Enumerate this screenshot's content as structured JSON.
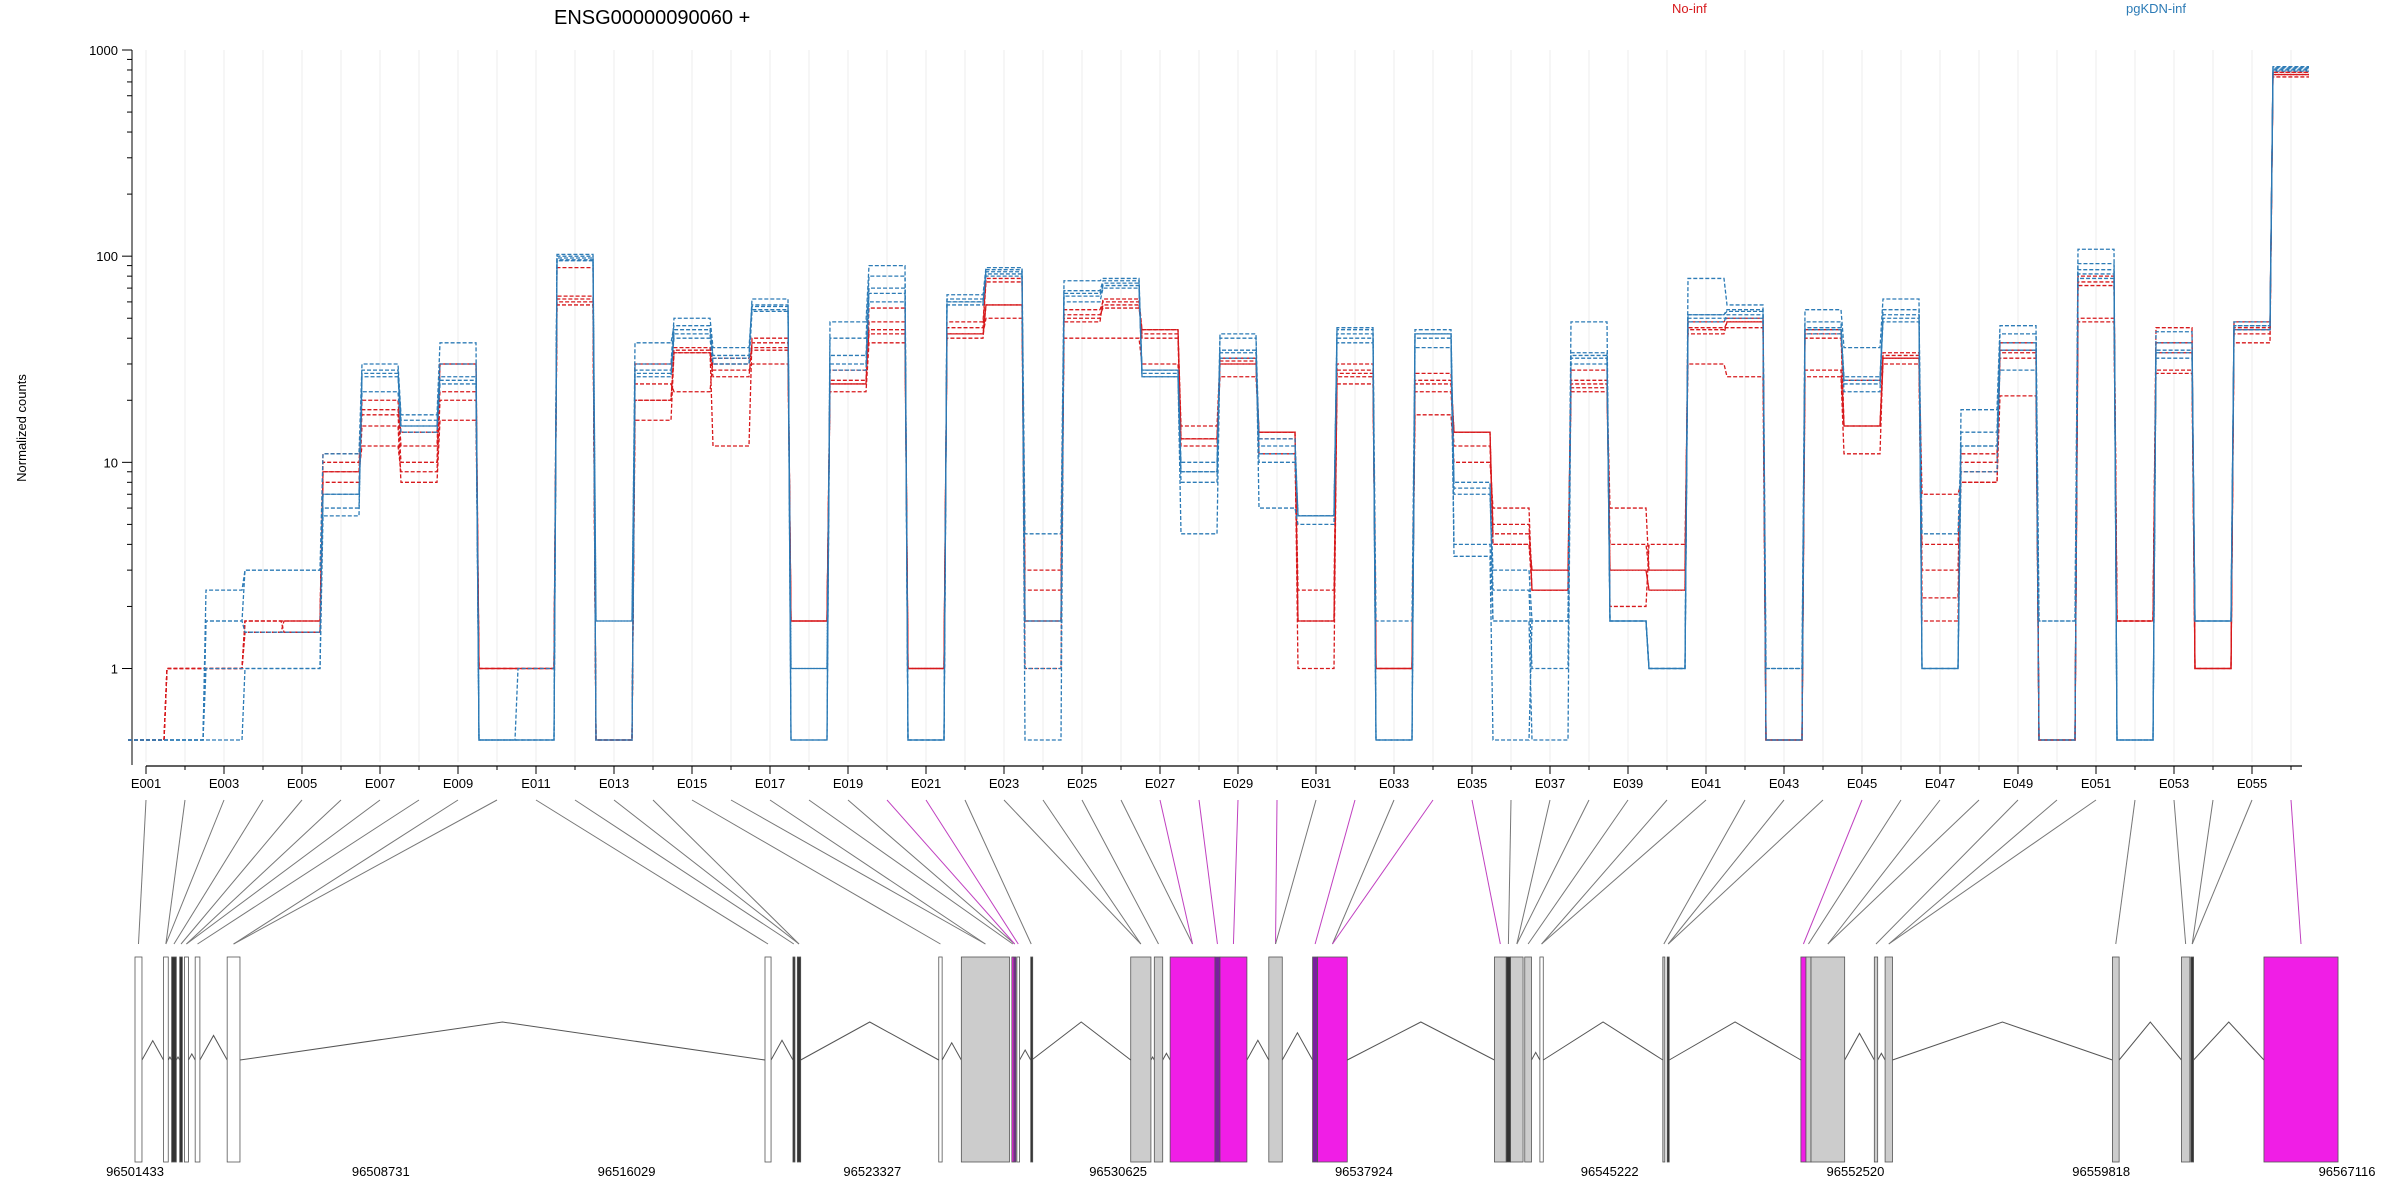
{
  "chart_data": {
    "type": "line",
    "title": "ENSG00000090060 +",
    "ylabel": "Normalized counts",
    "xlabel": "",
    "yscale": "log",
    "ylim": [
      0.45,
      1000
    ],
    "y_ticks": [
      "1",
      "10",
      "100",
      "1000"
    ],
    "grid": "vertical gridlines at each exon bin",
    "legend": [
      {
        "name": "No-inf",
        "color": "#d7191c"
      },
      {
        "name": "pgKDN-inf",
        "color": "#2c7bb6"
      }
    ],
    "x_tick_labels": [
      "E001",
      "E003",
      "E005",
      "E007",
      "E009",
      "E011",
      "E013",
      "E015",
      "E017",
      "E019",
      "E021",
      "E023",
      "E025",
      "E027",
      "E029",
      "E031",
      "E033",
      "E035",
      "E037",
      "E039",
      "E041",
      "E043",
      "E045",
      "E047",
      "E049",
      "E051",
      "E053",
      "E055"
    ],
    "bins": [
      "E001",
      "E002",
      "E003",
      "E004",
      "E005",
      "E006",
      "E007",
      "E008",
      "E009",
      "E010",
      "E011",
      "E012",
      "E013",
      "E014",
      "E015",
      "E016",
      "E017",
      "E018",
      "E019",
      "E020",
      "E021",
      "E022",
      "E023",
      "E024",
      "E025",
      "E026",
      "E027",
      "E028",
      "E029",
      "E030",
      "E031",
      "E032",
      "E033",
      "E034",
      "E035",
      "E036",
      "E037",
      "E038",
      "E039",
      "E040",
      "E041",
      "E042",
      "E043",
      "E044",
      "E045",
      "E046",
      "E047",
      "E048",
      "E049",
      "E050",
      "E051",
      "E052",
      "E053",
      "E054",
      "E055",
      "E056"
    ],
    "series": [
      {
        "group": "No-inf",
        "color": "#d7191c",
        "values": [
          0.45,
          1,
          1,
          1.7,
          1.5,
          9,
          20,
          12,
          30,
          1,
          1,
          60,
          0.45,
          30,
          35,
          12,
          40,
          1.7,
          28,
          42,
          1,
          45,
          75,
          1,
          55,
          60,
          40,
          12,
          30,
          14,
          1.7,
          26,
          1,
          25,
          14,
          4,
          2.4,
          25,
          4,
          3,
          42,
          48,
          0.45,
          40,
          25,
          32,
          2.2,
          11,
          35,
          0.45,
          80,
          1.7,
          38,
          1,
          42,
          760
        ]
      },
      {
        "group": "No-inf",
        "color": "#d7191c",
        "values": [
          0.45,
          1,
          1,
          1.7,
          1.7,
          11,
          18,
          14,
          22,
          1,
          1,
          88,
          0.45,
          24,
          22,
          32,
          35,
          1.7,
          25,
          48,
          1,
          40,
          58,
          2.4,
          52,
          56,
          44,
          15,
          32,
          11,
          1.7,
          30,
          1,
          22,
          12,
          5,
          2.4,
          28,
          2,
          4,
          30,
          26,
          0.45,
          28,
          15,
          30,
          1.7,
          9,
          38,
          0.45,
          50,
          1.7,
          28,
          1,
          45,
          780
        ]
      },
      {
        "group": "No-inf",
        "color": "#d7191c",
        "values": [
          0.45,
          1,
          1,
          1.5,
          1.7,
          8,
          15,
          8,
          16,
          1,
          1,
          58,
          0.45,
          20,
          36,
          30,
          36,
          1.7,
          22,
          38,
          1,
          48,
          78,
          1.7,
          40,
          40,
          30,
          13,
          26,
          14,
          1.7,
          24,
          1,
          17,
          10,
          6,
          2.4,
          22,
          3,
          2.4,
          45,
          45,
          0.45,
          26,
          11,
          32,
          4,
          8,
          21,
          0.45,
          48,
          1.7,
          45,
          1,
          48,
          740
        ]
      },
      {
        "group": "No-inf",
        "color": "#d7191c",
        "values": [
          0.45,
          1,
          1,
          1.5,
          1.5,
          9,
          12,
          9,
          20,
          1,
          1,
          62,
          0.45,
          16,
          34,
          28,
          30,
          1.7,
          24,
          44,
          1,
          42,
          50,
          1.7,
          50,
          58,
          42,
          13,
          31,
          13,
          1,
          27,
          1,
          27,
          14,
          4.5,
          3,
          23,
          6,
          3,
          44,
          48,
          0.45,
          42,
          15,
          33,
          7,
          8,
          32,
          0.45,
          75,
          1.7,
          27,
          1,
          38,
          780
        ]
      },
      {
        "group": "No-inf",
        "color": "#d7191c",
        "values": [
          0.45,
          1,
          1,
          1.7,
          1.7,
          10,
          17,
          10,
          30,
          1,
          1,
          64,
          0.45,
          20,
          34,
          26,
          38,
          1.7,
          24,
          56,
          1,
          42,
          58,
          3,
          48,
          62,
          44,
          13,
          30,
          14,
          2.4,
          28,
          1,
          24,
          14,
          4,
          3,
          24,
          3,
          2.4,
          48,
          50,
          0.45,
          44,
          15,
          34,
          3,
          10,
          34,
          0.45,
          72,
          1.7,
          34,
          1,
          44,
          760
        ]
      },
      {
        "group": "pgKDN-inf",
        "color": "#2c7bb6",
        "values": [
          0.45,
          0.45,
          2.4,
          3,
          3,
          11,
          30,
          17,
          38,
          0.45,
          1,
          100,
          1.7,
          30,
          50,
          36,
          58,
          0.45,
          48,
          90,
          0.45,
          65,
          88,
          4.5,
          76,
          78,
          27,
          8,
          42,
          6,
          5,
          42,
          1.7,
          42,
          4,
          1.7,
          1.7,
          48,
          1.7,
          1,
          78,
          58,
          1,
          55,
          36,
          62,
          1,
          18,
          46,
          1.7,
          108,
          0.45,
          43,
          1.7,
          48,
          820
        ]
      },
      {
        "group": "pgKDN-inf",
        "color": "#2c7bb6",
        "values": [
          0.45,
          0.45,
          1.7,
          3,
          3,
          6,
          26,
          15,
          30,
          0.45,
          0.45,
          102,
          1.7,
          38,
          46,
          32,
          62,
          0.45,
          40,
          80,
          0.45,
          60,
          84,
          1.7,
          68,
          76,
          26,
          9,
          40,
          13,
          5.5,
          45,
          0.45,
          44,
          8,
          1.7,
          0.45,
          30,
          1.7,
          1,
          52,
          55,
          1,
          48,
          22,
          55,
          1,
          14,
          42,
          1.7,
          92,
          0.45,
          32,
          1.7,
          44,
          790
        ]
      },
      {
        "group": "pgKDN-inf",
        "color": "#2c7bb6",
        "values": [
          0.45,
          0.45,
          1.7,
          1.5,
          1.5,
          7,
          22,
          14,
          24,
          0.45,
          0.45,
          96,
          0.45,
          28,
          40,
          30,
          57,
          0.45,
          33,
          66,
          0.45,
          58,
          86,
          1.7,
          64,
          72,
          26,
          4.5,
          34,
          11,
          5.5,
          40,
          0.45,
          42,
          7,
          2.4,
          1,
          34,
          1.7,
          1,
          50,
          50,
          0.45,
          45,
          26,
          52,
          4.5,
          12,
          38,
          0.45,
          86,
          0.45,
          34,
          1.7,
          44,
          810
        ]
      },
      {
        "group": "pgKDN-inf",
        "color": "#2c7bb6",
        "values": [
          0.45,
          0.45,
          1,
          1,
          1,
          5.5,
          28,
          16,
          26,
          0.45,
          0.45,
          95,
          0.45,
          27,
          44,
          33,
          55,
          1,
          28,
          60,
          0.45,
          60,
          80,
          0.45,
          60,
          70,
          28,
          10,
          35,
          12,
          5.5,
          44,
          0.45,
          40,
          3.5,
          0.45,
          1.7,
          32,
          1.7,
          1,
          48,
          52,
          0.45,
          42,
          24,
          48,
          1,
          12,
          28,
          0.45,
          82,
          0.45,
          35,
          1.7,
          46,
          830
        ]
      },
      {
        "group": "pgKDN-inf",
        "color": "#2c7bb6",
        "values": [
          0.45,
          0.45,
          0.45,
          1,
          1,
          7,
          27,
          15,
          25,
          0.45,
          0.45,
          98,
          0.45,
          26,
          42,
          30,
          54,
          1,
          30,
          70,
          0.45,
          62,
          82,
          1,
          66,
          74,
          28,
          9,
          32,
          10,
          5.5,
          38,
          0.45,
          36,
          7.5,
          3,
          1.7,
          33,
          1.7,
          1,
          52,
          54,
          0.45,
          44,
          25,
          50,
          1,
          9,
          35,
          0.45,
          78,
          0.45,
          38,
          1.7,
          46,
          800
        ]
      }
    ],
    "connector_highlight_bins": [
      "E020",
      "E021",
      "E027",
      "E028",
      "E029",
      "E030",
      "E032",
      "E034",
      "E035",
      "E045",
      "E056"
    ],
    "genomic_axis": {
      "labels": [
        "96501433",
        "96508731",
        "96516029",
        "96523327",
        "96530625",
        "96537924",
        "96545222",
        "96552520",
        "96559818",
        "96567116"
      ]
    },
    "gene_model_exons": [
      {
        "start": 96501433,
        "end": 96501640,
        "fill": "white"
      },
      {
        "start": 96502280,
        "end": 96502420,
        "fill": "white"
      },
      {
        "start": 96502520,
        "end": 96502660,
        "fill": "dark"
      },
      {
        "start": 96502760,
        "end": 96502840,
        "fill": "dark"
      },
      {
        "start": 96502900,
        "end": 96503020,
        "fill": "white"
      },
      {
        "start": 96503220,
        "end": 96503360,
        "fill": "white"
      },
      {
        "start": 96504170,
        "end": 96504550,
        "fill": "white"
      },
      {
        "start": 96520140,
        "end": 96520320,
        "fill": "white"
      },
      {
        "start": 96520970,
        "end": 96521020,
        "fill": "dark"
      },
      {
        "start": 96521100,
        "end": 96521200,
        "fill": "dark"
      },
      {
        "start": 96525300,
        "end": 96525400,
        "fill": "white"
      },
      {
        "start": 96525970,
        "end": 96527400,
        "fill": "grey"
      },
      {
        "start": 96527470,
        "end": 96527530,
        "fill": "magenta"
      },
      {
        "start": 96527530,
        "end": 96527580,
        "fill": "purple"
      },
      {
        "start": 96527620,
        "end": 96527700,
        "fill": "white"
      },
      {
        "start": 96528030,
        "end": 96528060,
        "fill": "dark"
      },
      {
        "start": 96531000,
        "end": 96531600,
        "fill": "grey"
      },
      {
        "start": 96531700,
        "end": 96531950,
        "fill": "grey"
      },
      {
        "start": 96532170,
        "end": 96533500,
        "fill": "magenta"
      },
      {
        "start": 96533500,
        "end": 96533650,
        "fill": "purple"
      },
      {
        "start": 96533650,
        "end": 96534450,
        "fill": "magenta"
      },
      {
        "start": 96535100,
        "end": 96535500,
        "fill": "grey"
      },
      {
        "start": 96536400,
        "end": 96536550,
        "fill": "purple"
      },
      {
        "start": 96536550,
        "end": 96537430,
        "fill": "magenta"
      },
      {
        "start": 96541800,
        "end": 96542150,
        "fill": "grey"
      },
      {
        "start": 96542150,
        "end": 96542280,
        "fill": "dark"
      },
      {
        "start": 96542280,
        "end": 96542650,
        "fill": "grey"
      },
      {
        "start": 96542700,
        "end": 96542900,
        "fill": "grey"
      },
      {
        "start": 96543150,
        "end": 96543250,
        "fill": "white"
      },
      {
        "start": 96546800,
        "end": 96546860,
        "fill": "grey"
      },
      {
        "start": 96546930,
        "end": 96546990,
        "fill": "dark"
      },
      {
        "start": 96550900,
        "end": 96551050,
        "fill": "magenta"
      },
      {
        "start": 96551050,
        "end": 96551200,
        "fill": "grey"
      },
      {
        "start": 96551200,
        "end": 96552200,
        "fill": "grey"
      },
      {
        "start": 96553080,
        "end": 96553180,
        "fill": "grey"
      },
      {
        "start": 96553400,
        "end": 96553620,
        "fill": "grey"
      },
      {
        "start": 96560150,
        "end": 96560350,
        "fill": "grey"
      },
      {
        "start": 96562200,
        "end": 96562450,
        "fill": "grey"
      },
      {
        "start": 96562480,
        "end": 96562560,
        "fill": "dark"
      },
      {
        "start": 96564650,
        "end": 96566850,
        "fill": "magenta"
      }
    ]
  }
}
